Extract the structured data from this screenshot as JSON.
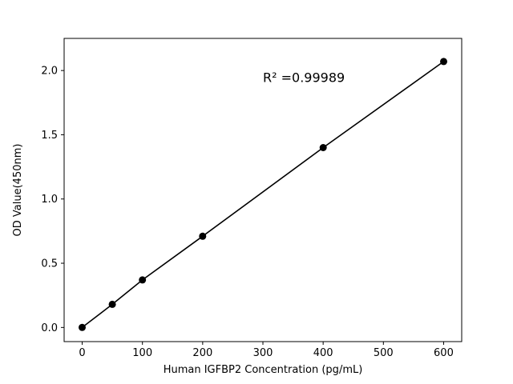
{
  "chart_data": {
    "type": "scatter",
    "title": "",
    "xlabel": "Human IGFBP2 Concentration (pg/mL)",
    "ylabel": "OD Value(450nm)",
    "x": [
      0,
      50,
      100,
      200,
      400,
      600
    ],
    "y": [
      0.0,
      0.18,
      0.37,
      0.71,
      1.4,
      2.07
    ],
    "xlim": [
      -30,
      630
    ],
    "ylim": [
      -0.11,
      2.25
    ],
    "xticks": [
      0,
      100,
      200,
      300,
      400,
      500,
      600
    ],
    "xtick_labels": [
      "0",
      "100",
      "200",
      "300",
      "400",
      "500",
      "600"
    ],
    "yticks": [
      0.0,
      0.5,
      1.0,
      1.5,
      2.0
    ],
    "ytick_labels": [
      "0.0",
      "0.5",
      "1.0",
      "1.5",
      "2.0"
    ],
    "annotation": {
      "text": "R² =0.99989",
      "x": 300,
      "y": 1.91
    },
    "line": true,
    "grid": false,
    "legend": "none",
    "line_color": "#000000",
    "marker_color": "#000000",
    "frame_color": "#000000",
    "background": "#ffffff"
  }
}
